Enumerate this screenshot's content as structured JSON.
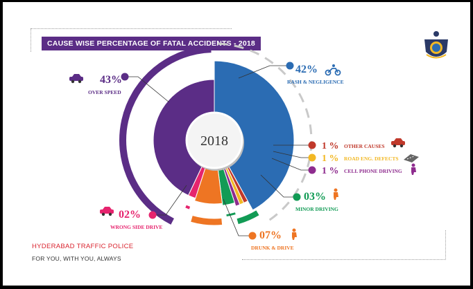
{
  "header": {
    "title": "CAUSE WISE PERCENTAGE OF FATAL ACCIDENTS - 2018"
  },
  "footer": {
    "org": "HYDERABAD TRAFFIC POLICE",
    "slogan": "FOR YOU, WITH YOU, ALWAYS"
  },
  "logo": {
    "label": "HYDERABAD TRAFFIC POLICE"
  },
  "chart_data": {
    "type": "pie",
    "center_label": "2018",
    "slices": [
      {
        "pct_text": "42%",
        "label": "RASH & NEGLIGENCE",
        "value": 42,
        "color": "#2b6cb3",
        "icon": "motorbike-icon"
      },
      {
        "pct_text": "1 %",
        "label": "OTHER CAUSES",
        "value": 1,
        "color": "#c0392b",
        "icon": "crash-car-icon"
      },
      {
        "pct_text": "1 %",
        "label": "ROAD ENG. DEFECTS",
        "value": 1,
        "color": "#f2b824",
        "icon": "road-icon"
      },
      {
        "pct_text": "1 %",
        "label": "CELL PHONE DRIVING",
        "value": 1,
        "color": "#8e2c8e",
        "icon": "phone-driver-icon"
      },
      {
        "pct_text": "03%",
        "label": "MINOR DRIVING",
        "value": 3,
        "color": "#129b55",
        "icon": "child-rider-icon"
      },
      {
        "pct_text": "07%",
        "label": "DRUNK & DRIVE",
        "value": 7,
        "color": "#ee7523",
        "icon": "drunk-icon"
      },
      {
        "pct_text": "02%",
        "label": "WRONG SIDE DRIVE",
        "value": 2,
        "color": "#e6246e",
        "icon": "wrong-side-car-icon"
      },
      {
        "pct_text": "43%",
        "label": "OVER SPEED",
        "value": 43,
        "color": "#5b2d86",
        "icon": "speeding-car-icon"
      }
    ]
  }
}
